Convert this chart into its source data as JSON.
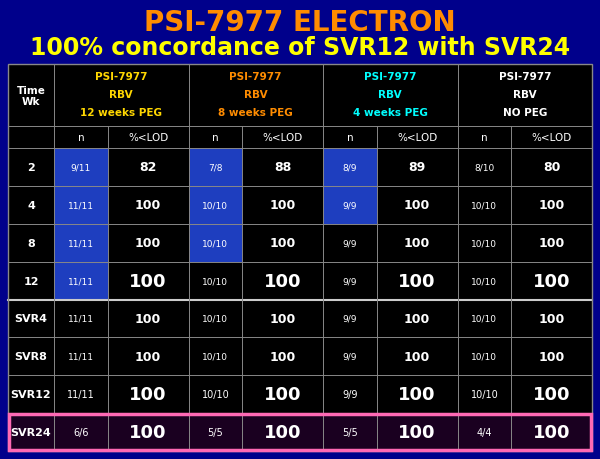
{
  "title_line1": "PSI-7977 ELECTRON",
  "title_line2": "100% concordance of SVR12 with SVR24",
  "title_color1": "#FF8C00",
  "title_color2": "#FFFF00",
  "bg_color": "#00008B",
  "table_bg": "#000000",
  "svr24_bg": "#000000",
  "header_colors": [
    "#FFD700",
    "#FF8C00",
    "#00FFFF",
    "#FFFFFF"
  ],
  "col_headers": [
    [
      "PSI-7977",
      "RBV",
      "12 weeks PEG"
    ],
    [
      "PSI-7977",
      "RBV",
      "8 weeks PEG"
    ],
    [
      "PSI-7977",
      "RBV",
      "4 weeks PEG"
    ],
    [
      "PSI-7977",
      "RBV",
      "NO PEG"
    ]
  ],
  "row_labels": [
    "2",
    "4",
    "8",
    "12",
    "SVR4",
    "SVR8",
    "SVR12",
    "SVR24"
  ],
  "data": [
    [
      "9/11",
      "82",
      "7/8",
      "88",
      "8/9",
      "89",
      "8/10",
      "80"
    ],
    [
      "11/11",
      "100",
      "10/10",
      "100",
      "9/9",
      "100",
      "10/10",
      "100"
    ],
    [
      "11/11",
      "100",
      "10/10",
      "100",
      "9/9",
      "100",
      "10/10",
      "100"
    ],
    [
      "11/11",
      "100",
      "10/10",
      "100",
      "9/9",
      "100",
      "10/10",
      "100"
    ],
    [
      "11/11",
      "100",
      "10/10",
      "100",
      "9/9",
      "100",
      "10/10",
      "100"
    ],
    [
      "11/11",
      "100",
      "10/10",
      "100",
      "9/9",
      "100",
      "10/10",
      "100"
    ],
    [
      "11/11",
      "100",
      "10/10",
      "100",
      "9/9",
      "100",
      "10/10",
      "100"
    ],
    [
      "6/6",
      "100",
      "5/5",
      "100",
      "5/5",
      "100",
      "4/4",
      "100"
    ]
  ],
  "blue_n_cells": {
    "0": [
      0,
      1,
      2
    ],
    "1": [
      0,
      1,
      2
    ],
    "2": [
      0,
      1
    ],
    "3": [
      0
    ]
  },
  "blue_color": "#1E3EBF",
  "grid_color": "#888888",
  "thick_line_color": "#FFFFFF",
  "svr24_border_color": "#FF69B4",
  "white": "#FFFFFF"
}
